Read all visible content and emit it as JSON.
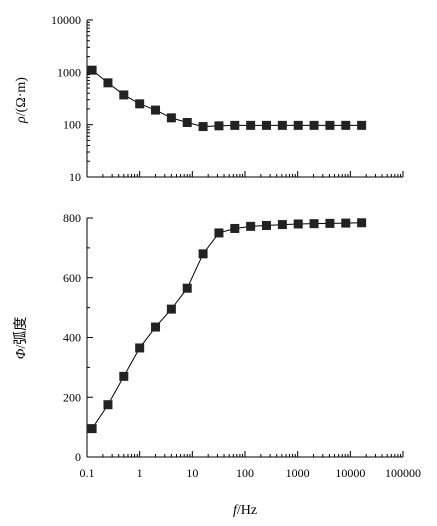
{
  "chart_data": [
    {
      "type": "line",
      "ylabel_symbol": "ρ",
      "ylabel_unit": "/(Ω·m)",
      "xscale": "log",
      "yscale": "log",
      "xlim": [
        0.1,
        100000
      ],
      "ylim": [
        10,
        10000
      ],
      "y_ticks": [
        10,
        100,
        1000,
        10000
      ],
      "y_tick_labels": [
        "10",
        "100",
        "1000",
        "10000"
      ],
      "grid": false,
      "marker": "square",
      "series": [
        {
          "x": [
            0.125,
            0.25,
            0.5,
            1,
            2,
            4,
            8,
            16,
            32,
            64,
            128,
            256,
            512,
            1024,
            2048,
            4096,
            8192,
            16384
          ],
          "y": [
            1100,
            630,
            370,
            250,
            190,
            135,
            110,
            92,
            95,
            97,
            97,
            97,
            97,
            97,
            97,
            97,
            97,
            97
          ]
        }
      ]
    },
    {
      "type": "line",
      "ylabel_symbol": "Φ",
      "ylabel_unit": "/弧度",
      "xlabel_symbol": "f",
      "xlabel_unit": "/Hz",
      "xscale": "log",
      "xlim": [
        0.1,
        100000
      ],
      "ylim": [
        0,
        800
      ],
      "x_ticks": [
        0.1,
        1,
        10,
        100,
        1000,
        10000,
        100000
      ],
      "x_tick_labels": [
        "0.1",
        "1",
        "10",
        "100",
        "1000",
        "10000",
        "100000"
      ],
      "y_ticks": [
        0,
        200,
        400,
        600,
        800
      ],
      "y_tick_labels": [
        "0",
        "200",
        "400",
        "600",
        "800"
      ],
      "grid": false,
      "marker": "square",
      "series": [
        {
          "x": [
            0.125,
            0.25,
            0.5,
            1,
            2,
            4,
            8,
            16,
            32,
            64,
            128,
            256,
            512,
            1024,
            2048,
            4096,
            8192,
            16384
          ],
          "y": [
            95,
            175,
            270,
            365,
            435,
            495,
            565,
            680,
            750,
            765,
            772,
            775,
            778,
            780,
            781,
            782,
            783,
            784
          ]
        }
      ]
    }
  ]
}
